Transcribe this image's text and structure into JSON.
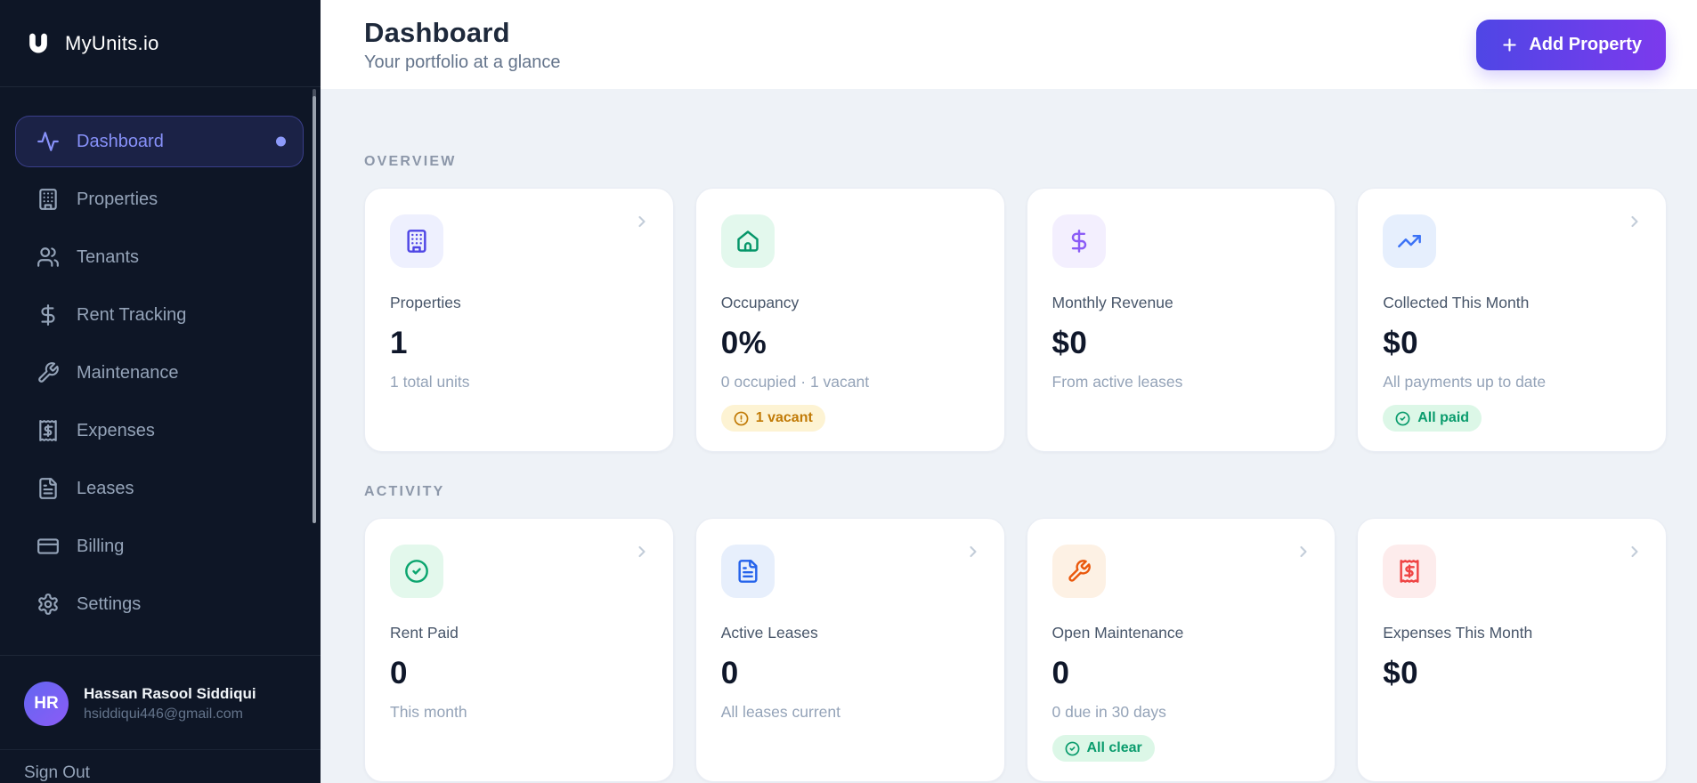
{
  "app": {
    "name": "MyUnits.io"
  },
  "colors": {
    "sidebar_bg": "#0e1626",
    "content_bg": "#eef2f7",
    "accent_gradient_from": "#4f46e5",
    "accent_gradient_to": "#7c3aed",
    "active_nav_text": "#8791f9",
    "avatar_gradient_from": "#6366f1",
    "avatar_gradient_to": "#8b5cf6",
    "badge_success_bg": "#dcf7e7",
    "badge_success_text": "#0a9c6d",
    "badge_warning_bg": "#fdf3d3",
    "badge_warning_text": "#c17a06"
  },
  "sidebar": {
    "nav": [
      {
        "label": "Dashboard",
        "icon": "activity-icon",
        "active": true
      },
      {
        "label": "Properties",
        "icon": "building-icon",
        "active": false
      },
      {
        "label": "Tenants",
        "icon": "users-icon",
        "active": false
      },
      {
        "label": "Rent Tracking",
        "icon": "dollar-icon",
        "active": false
      },
      {
        "label": "Maintenance",
        "icon": "wrench-icon",
        "active": false
      },
      {
        "label": "Expenses",
        "icon": "receipt-icon",
        "active": false
      },
      {
        "label": "Leases",
        "icon": "file-text-icon",
        "active": false
      },
      {
        "label": "Billing",
        "icon": "credit-card-icon",
        "active": false
      },
      {
        "label": "Settings",
        "icon": "gear-icon",
        "active": false
      }
    ],
    "user": {
      "initials": "HR",
      "name": "Hassan Rasool Siddiqui",
      "email": "hsiddiqui446@gmail.com"
    },
    "sign_out_label": "Sign Out"
  },
  "header": {
    "title": "Dashboard",
    "subtitle": "Your portfolio at a glance",
    "add_property_label": "Add Property"
  },
  "sections": [
    {
      "label": "OVERVIEW",
      "cards": [
        {
          "title": "Properties",
          "value": "1",
          "subtitle": "1 total units",
          "icon": "building-icon",
          "icon_color": "#4f46e5",
          "icon_bg": "#eef0fe",
          "chevron": true
        },
        {
          "title": "Occupancy",
          "value": "0%",
          "subtitle": "0 occupied · 1 vacant",
          "icon": "home-icon",
          "icon_color": "#059669",
          "icon_bg": "#e3f8ed",
          "chevron": false,
          "badge": {
            "label": "1 vacant",
            "tone": "warning",
            "icon": "alert-circle-icon",
            "bg": "#fdf3d3",
            "color": "#c17a06"
          }
        },
        {
          "title": "Monthly Revenue",
          "value": "$0",
          "subtitle": "From active leases",
          "icon": "dollar-icon",
          "icon_color": "#8b5cf6",
          "icon_bg": "#f3effe",
          "chevron": false
        },
        {
          "title": "Collected This Month",
          "value": "$0",
          "subtitle": "All payments up to date",
          "icon": "trending-up-icon",
          "icon_color": "#3b72f6",
          "icon_bg": "#e6effd",
          "chevron": true,
          "badge": {
            "label": "All paid",
            "tone": "success",
            "icon": "check-circle-icon",
            "bg": "#dcf7e7",
            "color": "#0a9c6d"
          }
        }
      ]
    },
    {
      "label": "ACTIVITY",
      "cards": [
        {
          "title": "Rent Paid",
          "value": "0",
          "subtitle": "This month",
          "icon": "check-circle-icon",
          "icon_color": "#0ba56e",
          "icon_bg": "#e3f8ec",
          "chevron": true
        },
        {
          "title": "Active Leases",
          "value": "0",
          "subtitle": "All leases current",
          "icon": "file-text-icon",
          "icon_color": "#2563eb",
          "icon_bg": "#e7effc",
          "chevron": true
        },
        {
          "title": "Open Maintenance",
          "value": "0",
          "subtitle": "0 due in 30 days",
          "icon": "wrench-icon",
          "icon_color": "#ea580c",
          "icon_bg": "#fdf1e4",
          "chevron": true,
          "badge": {
            "label": "All clear",
            "tone": "success",
            "icon": "check-circle-icon",
            "bg": "#dcf7e7",
            "color": "#0a9c6d"
          }
        },
        {
          "title": "Expenses This Month",
          "value": "$0",
          "subtitle": "",
          "icon": "receipt-icon",
          "icon_color": "#ef4444",
          "icon_bg": "#fdecec",
          "chevron": true
        }
      ]
    }
  ]
}
